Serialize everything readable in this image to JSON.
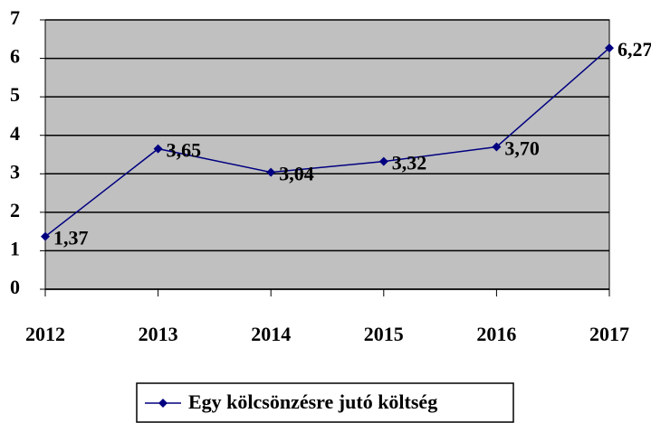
{
  "chart_data": {
    "type": "line",
    "categories": [
      "2012",
      "2013",
      "2014",
      "2015",
      "2016",
      "2017"
    ],
    "series": [
      {
        "name": "Egy kölcsönzésre jutó költség",
        "color": "#000080",
        "values": [
          1.37,
          3.65,
          3.04,
          3.32,
          3.7,
          6.27
        ],
        "value_labels": [
          "1,37",
          "3,65",
          "3,04",
          "3,32",
          "3,70",
          "6,27"
        ]
      }
    ],
    "ylim": [
      0,
      7
    ],
    "yticks": [
      0,
      1,
      2,
      3,
      4,
      5,
      6,
      7
    ],
    "grid": true,
    "plot_background": "#c0c0c0",
    "legend": "bottom"
  }
}
